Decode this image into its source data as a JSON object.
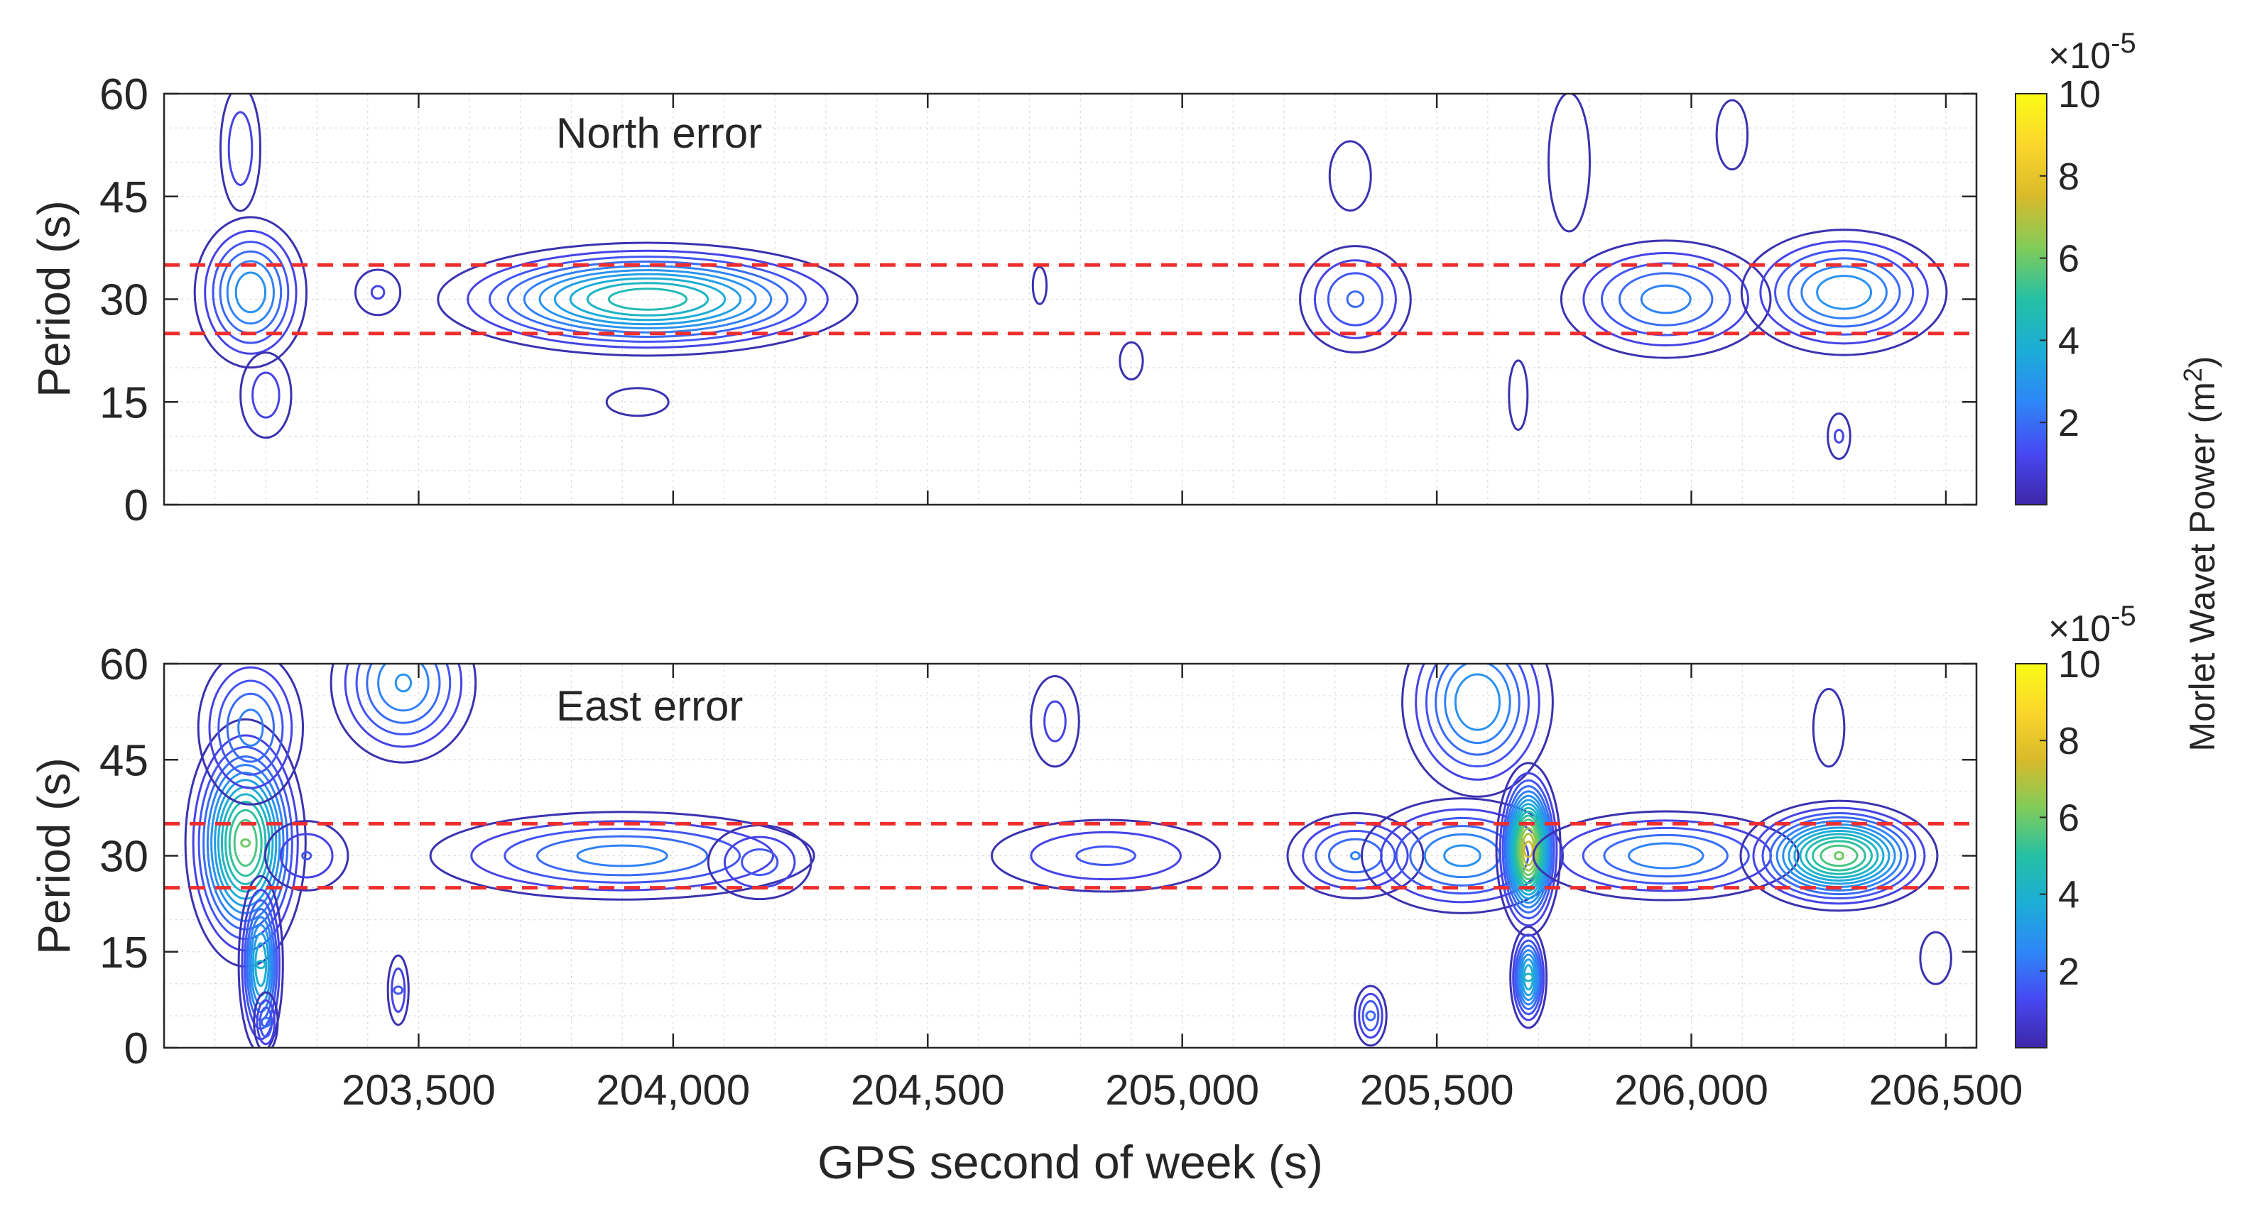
{
  "xlabel": "GPS second of week (s)",
  "colorbar_label": "Morlet Wavet Power (m",
  "colorbar_label_sup": "2",
  "colorbar_label_end": ")",
  "colorbar_colors": [
    "#3e26a8",
    "#4748f1",
    "#2e87f7",
    "#1cadd7",
    "#25c0a4",
    "#81cc59",
    "#d9ba2b",
    "#fbd62b",
    "#f9fb15"
  ],
  "threshold_color": "#ee2e2e",
  "contour_color": "#3b32b0",
  "chart_data": [
    {
      "type": "contour",
      "title": "North error",
      "ylabel": "Period (s)",
      "xlim": [
        203000,
        206560
      ],
      "ylim": [
        0,
        60
      ],
      "xticks": [
        203500,
        204000,
        204500,
        205000,
        205500,
        206000,
        206500
      ],
      "xtick_labels": [
        "203,500",
        "204,000",
        "204,500",
        "205,000",
        "205,500",
        "206,000",
        "206,500"
      ],
      "yticks": [
        0,
        15,
        30,
        45,
        60
      ],
      "ytick_labels": [
        "0",
        "15",
        "30",
        "45",
        "60"
      ],
      "threshold_lines": [
        25,
        35
      ],
      "grid": true,
      "colorbar": {
        "min": 0,
        "max": 10,
        "exponent_label": "×10",
        "exponent_sup": "-5",
        "ticks": [
          2,
          4,
          6,
          8,
          10
        ],
        "tick_labels": [
          "2",
          "4",
          "6",
          "8",
          "10"
        ]
      },
      "features": [
        {
          "t": 203170,
          "p": 31,
          "sx": 60,
          "sy": 6,
          "a": 3.2
        },
        {
          "t": 203150,
          "p": 52,
          "sx": 30,
          "sy": 7,
          "a": 1.4
        },
        {
          "t": 203200,
          "p": 16,
          "sx": 40,
          "sy": 5,
          "a": 1.3
        },
        {
          "t": 203420,
          "p": 31,
          "sx": 40,
          "sy": 3,
          "a": 1.1
        },
        {
          "t": 203950,
          "p": 30,
          "sx": 200,
          "sy": 4,
          "a": 5.0
        },
        {
          "t": 203930,
          "p": 15,
          "sx": 60,
          "sy": 2,
          "a": 1.0
        },
        {
          "t": 204720,
          "p": 32,
          "sx": 15,
          "sy": 3,
          "a": 0.9
        },
        {
          "t": 204900,
          "p": 21,
          "sx": 25,
          "sy": 3,
          "a": 0.9
        },
        {
          "t": 205340,
          "p": 30,
          "sx": 70,
          "sy": 5,
          "a": 2.0
        },
        {
          "t": 205330,
          "p": 48,
          "sx": 40,
          "sy": 5,
          "a": 1.0
        },
        {
          "t": 205660,
          "p": 16,
          "sx": 18,
          "sy": 5,
          "a": 1.0
        },
        {
          "t": 205760,
          "p": 50,
          "sx": 40,
          "sy": 10,
          "a": 1.0
        },
        {
          "t": 205950,
          "p": 30,
          "sx": 120,
          "sy": 5,
          "a": 2.6
        },
        {
          "t": 206080,
          "p": 54,
          "sx": 30,
          "sy": 5,
          "a": 1.0
        },
        {
          "t": 206300,
          "p": 31,
          "sx": 110,
          "sy": 5,
          "a": 3.2
        },
        {
          "t": 206290,
          "p": 10,
          "sx": 20,
          "sy": 3,
          "a": 1.1
        }
      ]
    },
    {
      "type": "contour",
      "title": "East error",
      "ylabel": "Period (s)",
      "xlim": [
        203000,
        206560
      ],
      "ylim": [
        0,
        60
      ],
      "xticks": [
        203500,
        204000,
        204500,
        205000,
        205500,
        206000,
        206500
      ],
      "xtick_labels": [
        "203,500",
        "204,000",
        "204,500",
        "205,000",
        "205,500",
        "206,000",
        "206,500"
      ],
      "yticks": [
        0,
        15,
        30,
        45,
        60
      ],
      "ytick_labels": [
        "0",
        "15",
        "30",
        "45",
        "60"
      ],
      "threshold_lines": [
        25,
        35
      ],
      "grid": true,
      "colorbar": {
        "min": 0,
        "max": 10,
        "exponent_label": "×10",
        "exponent_sup": "-5",
        "ticks": [
          2,
          4,
          6,
          8,
          10
        ],
        "tick_labels": [
          "2",
          "4",
          "6",
          "8",
          "10"
        ]
      },
      "features": [
        {
          "t": 203160,
          "p": 32,
          "sx": 55,
          "sy": 9,
          "a": 6.0
        },
        {
          "t": 203170,
          "p": 50,
          "sx": 60,
          "sy": 7,
          "a": 2.6
        },
        {
          "t": 203190,
          "p": 13,
          "sx": 22,
          "sy": 7,
          "a": 4.2
        },
        {
          "t": 203200,
          "p": 4,
          "sx": 15,
          "sy": 3,
          "a": 2.0
        },
        {
          "t": 203280,
          "p": 30,
          "sx": 60,
          "sy": 4,
          "a": 1.5
        },
        {
          "t": 203470,
          "p": 57,
          "sx": 80,
          "sy": 7,
          "a": 2.9
        },
        {
          "t": 203460,
          "p": 9,
          "sx": 15,
          "sy": 4,
          "a": 1.5
        },
        {
          "t": 203900,
          "p": 30,
          "sx": 220,
          "sy": 4,
          "a": 2.6
        },
        {
          "t": 204170,
          "p": 29,
          "sx": 70,
          "sy": 4,
          "a": 1.7
        },
        {
          "t": 204750,
          "p": 51,
          "sx": 40,
          "sy": 6,
          "a": 1.2
        },
        {
          "t": 204850,
          "p": 30,
          "sx": 160,
          "sy": 4,
          "a": 1.6
        },
        {
          "t": 205340,
          "p": 30,
          "sx": 80,
          "sy": 4,
          "a": 2.4
        },
        {
          "t": 205550,
          "p": 30,
          "sx": 110,
          "sy": 5,
          "a": 3.0
        },
        {
          "t": 205580,
          "p": 54,
          "sx": 80,
          "sy": 8,
          "a": 3.3
        },
        {
          "t": 205680,
          "p": 31,
          "sx": 28,
          "sy": 6,
          "a": 7.5
        },
        {
          "t": 205680,
          "p": 11,
          "sx": 18,
          "sy": 4,
          "a": 4.2
        },
        {
          "t": 205370,
          "p": 5,
          "sx": 20,
          "sy": 3,
          "a": 2.0
        },
        {
          "t": 205950,
          "p": 30,
          "sx": 150,
          "sy": 4,
          "a": 2.7
        },
        {
          "t": 206290,
          "p": 30,
          "sx": 90,
          "sy": 4,
          "a": 6.0
        },
        {
          "t": 206270,
          "p": 50,
          "sx": 30,
          "sy": 6,
          "a": 1.0
        },
        {
          "t": 206480,
          "p": 14,
          "sx": 30,
          "sy": 4,
          "a": 1.0
        }
      ]
    }
  ]
}
